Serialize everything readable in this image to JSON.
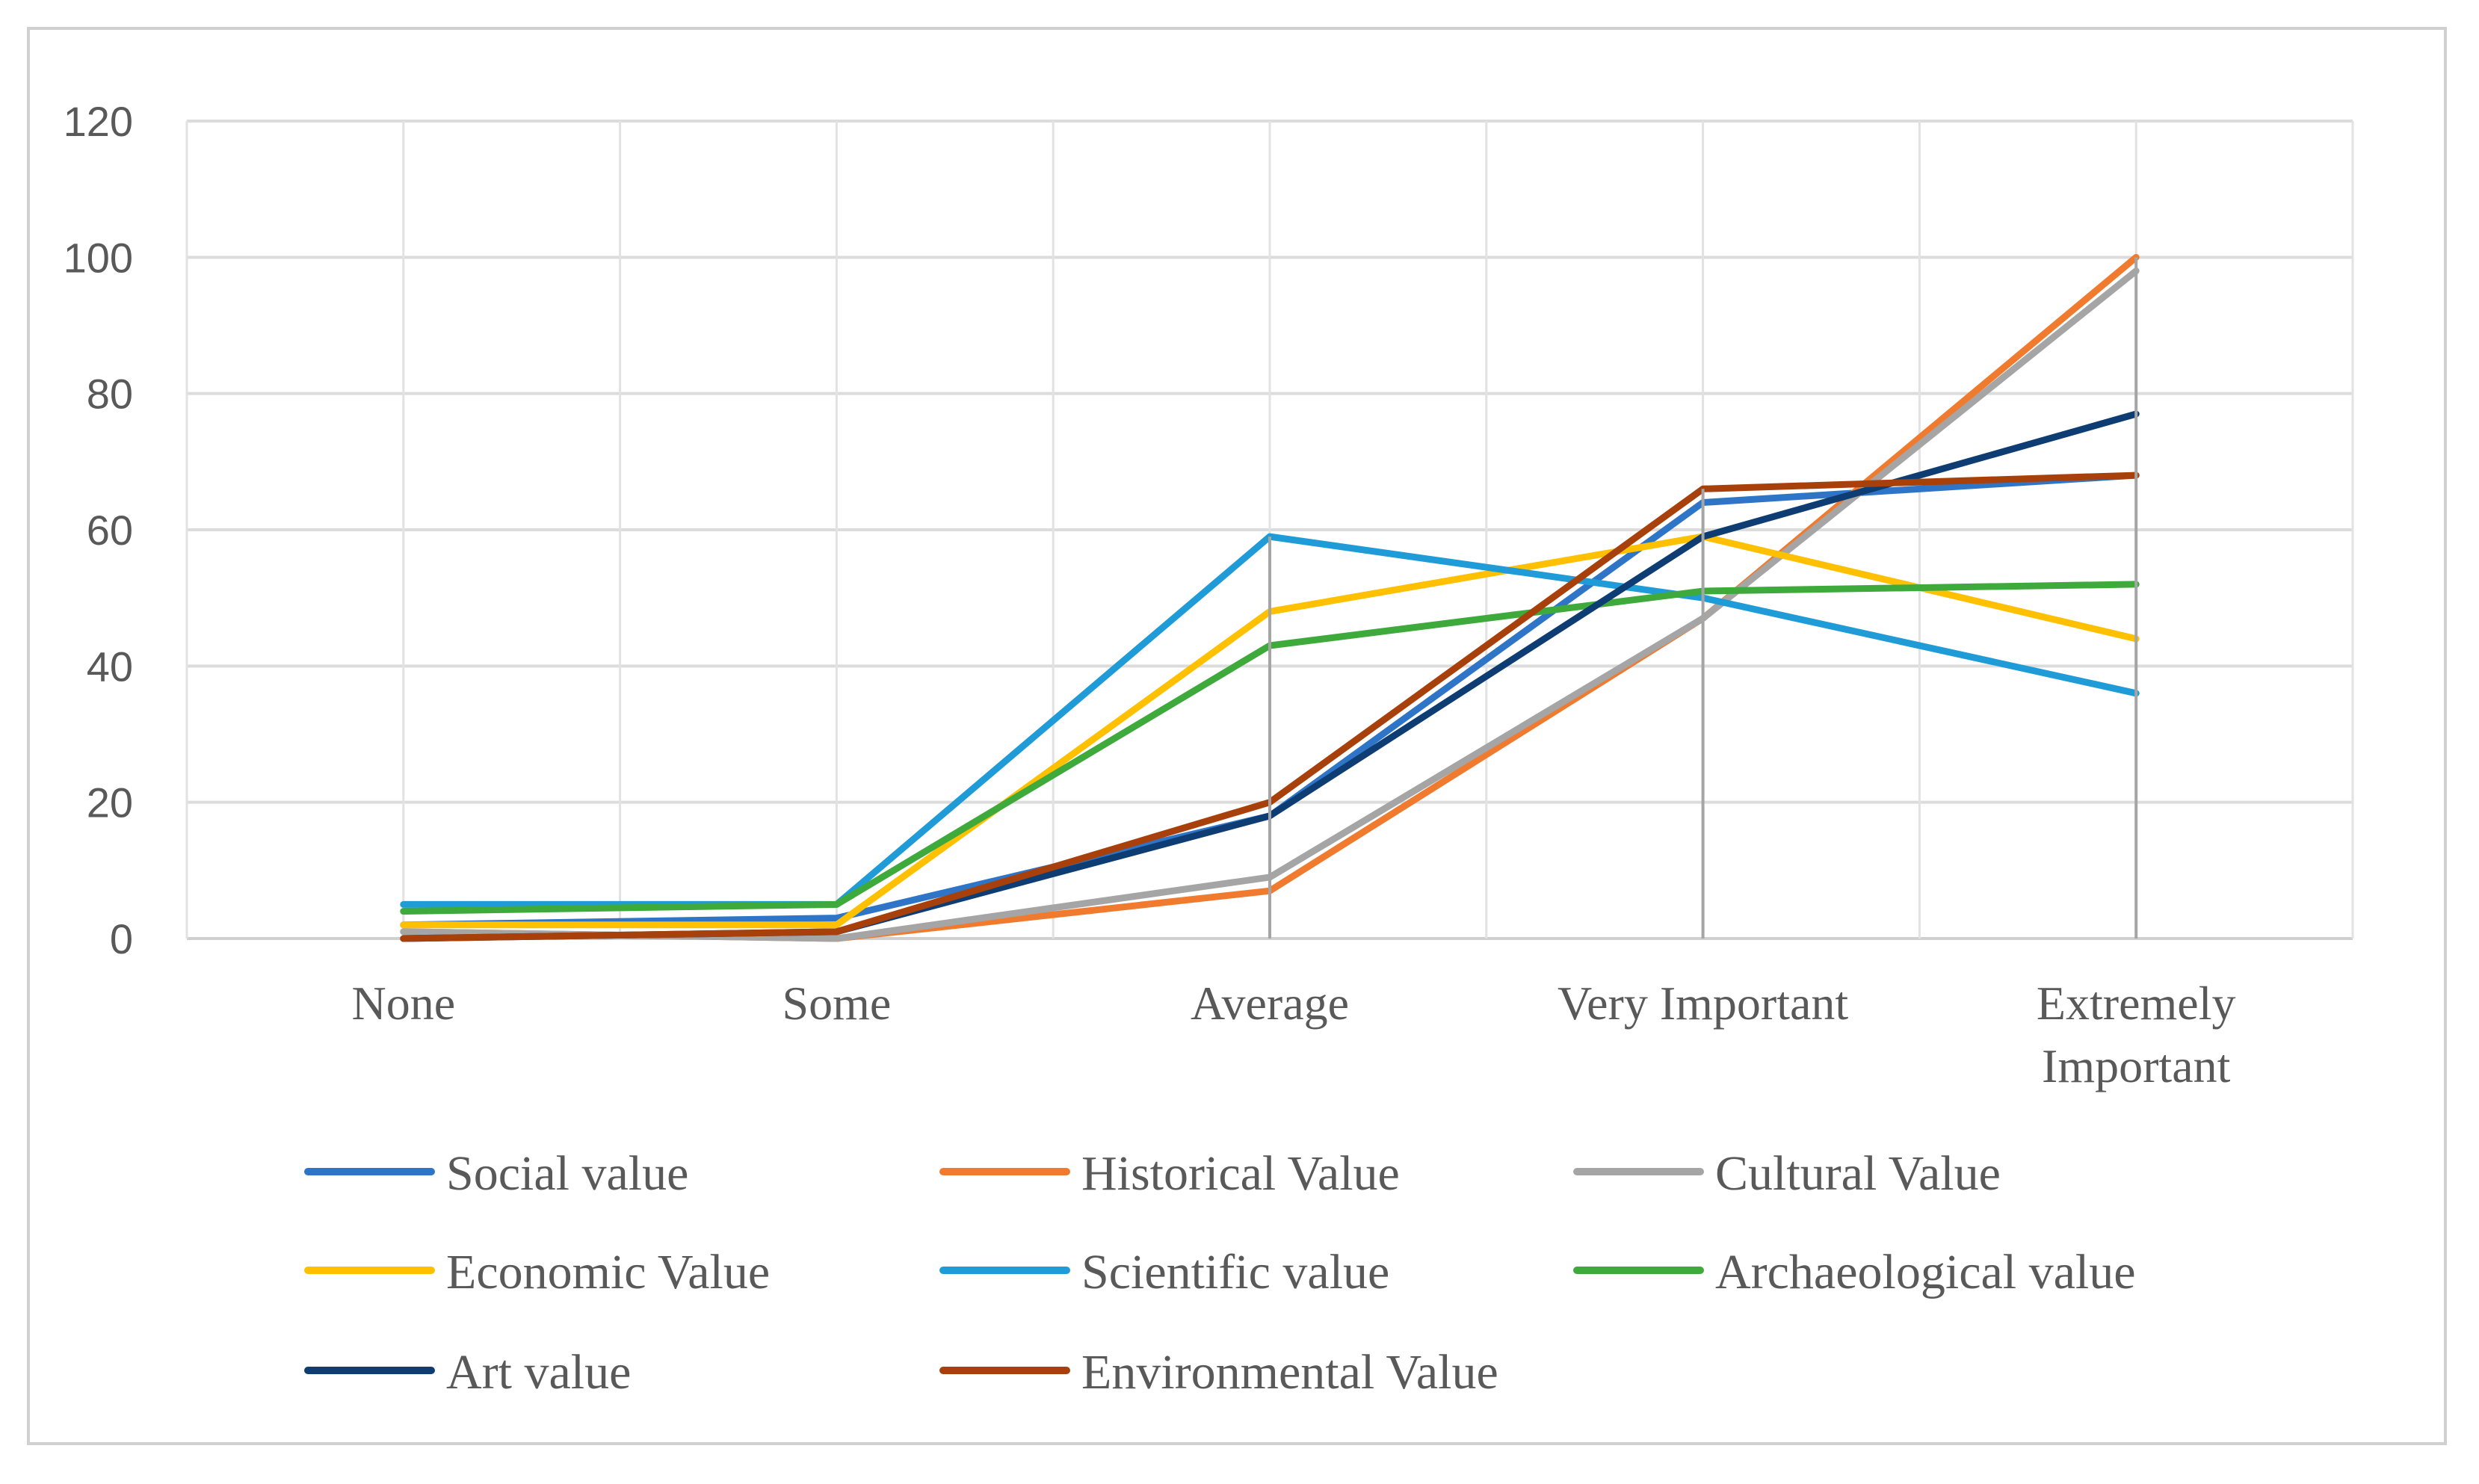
{
  "chart_data": {
    "type": "line",
    "title": "",
    "xlabel": "",
    "ylabel": "",
    "ylim": [
      0,
      120
    ],
    "yticks": [
      0,
      20,
      40,
      60,
      80,
      100,
      120
    ],
    "ytick_labels": [
      "0",
      "20",
      "40",
      "60",
      "80",
      "100",
      "120"
    ],
    "grid": true,
    "legend_position": "bottom",
    "categories": [
      {
        "lines": [
          "None"
        ]
      },
      {
        "lines": [
          "Some"
        ]
      },
      {
        "lines": [
          "Average"
        ]
      },
      {
        "lines": [
          "Very Important"
        ]
      },
      {
        "lines": [
          "Extremely",
          "Important"
        ]
      }
    ],
    "series": [
      {
        "name": "Social value",
        "color": "#2E75C8",
        "values": [
          2,
          3,
          18,
          64,
          68
        ]
      },
      {
        "name": "Historical Value",
        "color": "#F07B2E",
        "values": [
          1,
          0,
          7,
          47,
          100
        ]
      },
      {
        "name": "Cultural Value",
        "color": "#A5A5A5",
        "values": [
          1,
          0,
          9,
          47,
          98
        ]
      },
      {
        "name": "Economic Value",
        "color": "#FFC000",
        "values": [
          2,
          2,
          48,
          59,
          44
        ]
      },
      {
        "name": "Scientific value",
        "color": "#1F9BD7",
        "values": [
          5,
          5,
          59,
          50,
          36
        ]
      },
      {
        "name": "Archaeological value",
        "color": "#3FAA3C",
        "values": [
          4,
          5,
          43,
          51,
          52
        ]
      },
      {
        "name": "Art value",
        "color": "#0D3D73",
        "values": [
          0,
          1,
          18,
          59,
          77
        ]
      },
      {
        "name": "Environmental Value",
        "color": "#A8400B",
        "values": [
          0,
          1,
          20,
          66,
          68
        ]
      }
    ]
  }
}
